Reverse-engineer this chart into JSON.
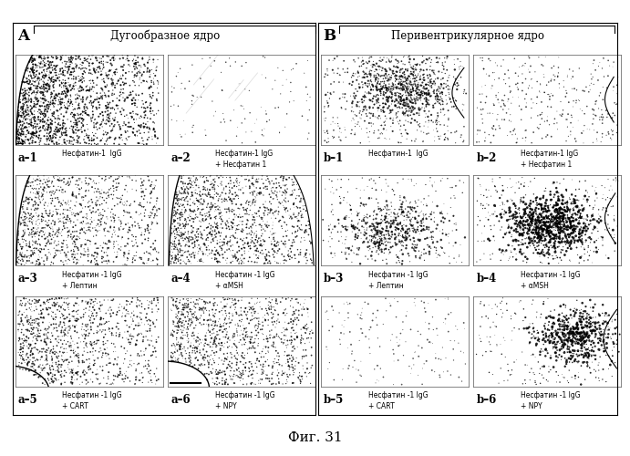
{
  "title": "Фиг. 31",
  "panel_A_label": "A",
  "panel_B_label": "B",
  "panel_A_title": "Дугообразное ядро",
  "panel_B_title": "Перивентрикулярное ядро",
  "bg_color": "#ffffff",
  "outer_bg": "#e8e4dc",
  "subpanels": [
    {
      "id": "a-1",
      "col": 0,
      "row": 0,
      "bold_label": "a–1",
      "text1": "Несфатин-1  IgG",
      "text2": "",
      "shape": "arc_dense"
    },
    {
      "id": "a-2",
      "col": 1,
      "row": 0,
      "bold_label": "a–2",
      "text1": "Несфатин-1 IgG",
      "text2": "+ Несфатин 1",
      "shape": "sparse_lines"
    },
    {
      "id": "a-3",
      "col": 0,
      "row": 1,
      "bold_label": "a–3",
      "text1": "Несфатин -1 IgG",
      "text2": "+ Лептин",
      "shape": "arc_medium"
    },
    {
      "id": "a-4",
      "col": 1,
      "row": 1,
      "bold_label": "a–4",
      "text1": "Несфатин -1 IgG",
      "text2": "+ αMSH",
      "shape": "arc_dense_right"
    },
    {
      "id": "a-5",
      "col": 0,
      "row": 2,
      "bold_label": "a–5",
      "text1": "Несфатин -1 IgG",
      "text2": "+ CART",
      "shape": "arc_wide"
    },
    {
      "id": "a-6",
      "col": 1,
      "row": 2,
      "bold_label": "a–6",
      "text1": "Несфатин -1 IgG",
      "text2": "+ NPY",
      "shape": "arc_wide_right"
    },
    {
      "id": "b-1",
      "col": 2,
      "row": 0,
      "bold_label": "b–1",
      "text1": "Несфатин-1  IgG",
      "text2": "",
      "shape": "peri_dense"
    },
    {
      "id": "b-2",
      "col": 3,
      "row": 0,
      "bold_label": "b–2",
      "text1": "Несфатин-1 IgG",
      "text2": "+ Несфатин 1",
      "shape": "peri_sparse"
    },
    {
      "id": "b-3",
      "col": 2,
      "row": 1,
      "bold_label": "b–3",
      "text1": "Несфатин -1 IgG",
      "text2": "+ Лептин",
      "shape": "peri_cluster_low"
    },
    {
      "id": "b-4",
      "col": 3,
      "row": 1,
      "bold_label": "b–4",
      "text1": "Несфатин -1 IgG",
      "text2": "+ αMSH",
      "shape": "peri_cluster_dark"
    },
    {
      "id": "b-5",
      "col": 2,
      "row": 2,
      "bold_label": "b–5",
      "text1": "Несфатин -1 IgG",
      "text2": "+ CART",
      "shape": "peri_verysparse"
    },
    {
      "id": "b-6",
      "col": 3,
      "row": 2,
      "bold_label": "b–6",
      "text1": "Несфатин -1 IgG",
      "text2": "+ NPY",
      "shape": "peri_cluster_right"
    }
  ]
}
